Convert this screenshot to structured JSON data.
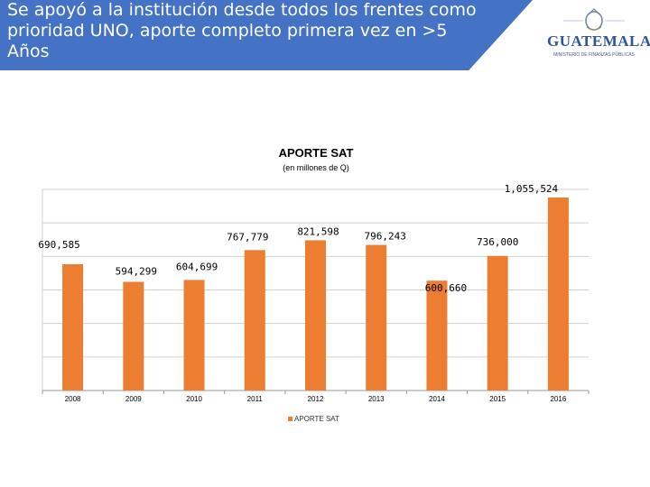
{
  "header": {
    "title": " Se apoyó a la institución desde todos los frentes como prioridad UNO, aporte completo primera vez en >5 Años"
  },
  "logo": {
    "text": "GUATEMALA",
    "subtext": "MINISTERIO DE FINANZAS PÚBLICAS",
    "color": "#2f5597"
  },
  "chart_data": {
    "type": "bar",
    "title": "APORTE SAT",
    "subtitle": "(en millones de Q)",
    "categories": [
      "2008",
      "2009",
      "2010",
      "2011",
      "2012",
      "2013",
      "2014",
      "2015",
      "2016"
    ],
    "series": [
      {
        "name": "APORTE SAT",
        "color": "#ed7d31",
        "values": [
          690585,
          594299,
          604699,
          767779,
          821598,
          796243,
          600660,
          736000,
          1055524
        ],
        "labels": [
          "690,585",
          "594,299",
          "604,699",
          "767,779",
          "821,598",
          "796,243",
          "600,660",
          "736,000",
          "1,055,524"
        ]
      }
    ],
    "ylim": [
      0,
      1100000
    ],
    "grid": true,
    "legend_position": "bottom"
  }
}
